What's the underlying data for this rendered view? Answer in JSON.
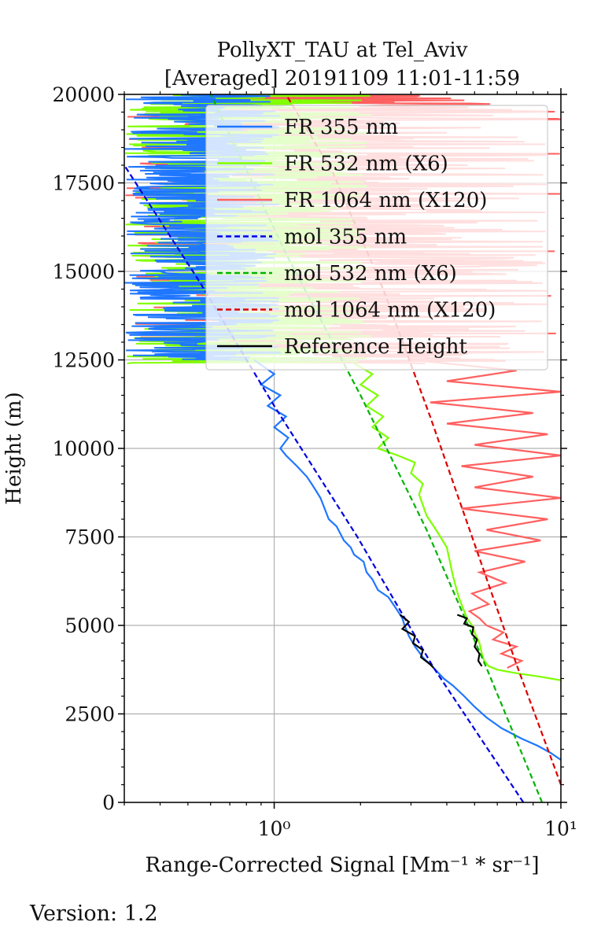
{
  "chart_data": {
    "type": "line",
    "title": "PollyXT_TAU at Tel_Aviv",
    "subtitle": "[Averaged] 20191109 11:01-11:59",
    "xlabel": "Range-Corrected Signal [Mm⁻¹ * sr⁻¹]",
    "ylabel": "Height (m)",
    "xscale": "log",
    "xlim": [
      0.3,
      10
    ],
    "ylim": [
      0,
      20000
    ],
    "xticks": [
      {
        "value": 1,
        "label": "10⁰"
      },
      {
        "value": 10,
        "label": "10¹"
      }
    ],
    "yticks": [
      0,
      2500,
      5000,
      7500,
      10000,
      12500,
      15000,
      17500,
      20000
    ],
    "grid": true,
    "legend_position": "upper-right",
    "series": [
      {
        "name": "FR 355 nm",
        "color": "#1f77ff",
        "style": "solid",
        "points": [
          [
            10,
            1200
          ],
          [
            9.2,
            1400
          ],
          [
            8.3,
            1600
          ],
          [
            7.3,
            1800
          ],
          [
            6.2,
            2100
          ],
          [
            5.5,
            2400
          ],
          [
            5.0,
            2700
          ],
          [
            4.6,
            3000
          ],
          [
            4.2,
            3300
          ],
          [
            3.9,
            3500
          ],
          [
            3.6,
            3800
          ],
          [
            3.3,
            4100
          ],
          [
            3.1,
            4400
          ],
          [
            2.95,
            4700
          ],
          [
            2.85,
            5000
          ],
          [
            2.8,
            5200
          ],
          [
            2.7,
            5400
          ],
          [
            2.65,
            5500
          ],
          [
            2.6,
            5600
          ],
          [
            2.5,
            5800
          ],
          [
            2.3,
            6000
          ],
          [
            2.2,
            6300
          ],
          [
            2.1,
            6500
          ],
          [
            2.05,
            6800
          ],
          [
            1.9,
            7000
          ],
          [
            1.85,
            7200
          ],
          [
            1.75,
            7400
          ],
          [
            1.7,
            7600
          ],
          [
            1.65,
            7800
          ],
          [
            1.55,
            8000
          ],
          [
            1.5,
            8300
          ],
          [
            1.45,
            8600
          ],
          [
            1.4,
            8800
          ],
          [
            1.35,
            9000
          ],
          [
            1.3,
            9200
          ],
          [
            1.2,
            9500
          ],
          [
            1.1,
            9800
          ],
          [
            1.05,
            10000
          ],
          [
            1.12,
            10300
          ],
          [
            1.0,
            10600
          ],
          [
            1.1,
            10900
          ],
          [
            0.95,
            11200
          ],
          [
            1.05,
            11500
          ],
          [
            0.9,
            11800
          ],
          [
            1.0,
            12100
          ],
          [
            0.85,
            12500
          ]
        ]
      },
      {
        "name": "FR 532 nm (X6)",
        "color": "#7fff00",
        "style": "solid",
        "points": [
          [
            10,
            3450
          ],
          [
            8.5,
            3550
          ],
          [
            7.0,
            3650
          ],
          [
            6.0,
            3750
          ],
          [
            5.6,
            3850
          ],
          [
            5.4,
            4000
          ],
          [
            5.3,
            4200
          ],
          [
            5.2,
            4500
          ],
          [
            5.0,
            4800
          ],
          [
            4.9,
            5000
          ],
          [
            4.7,
            5200
          ],
          [
            4.6,
            5400
          ],
          [
            4.5,
            5600
          ],
          [
            4.4,
            5800
          ],
          [
            4.3,
            6100
          ],
          [
            4.2,
            6400
          ],
          [
            4.1,
            6800
          ],
          [
            4.0,
            7200
          ],
          [
            3.8,
            7500
          ],
          [
            3.6,
            7800
          ],
          [
            3.4,
            8100
          ],
          [
            3.3,
            8400
          ],
          [
            3.2,
            8700
          ],
          [
            3.3,
            9000
          ],
          [
            3.0,
            9300
          ],
          [
            3.1,
            9600
          ],
          [
            2.7,
            9800
          ],
          [
            2.3,
            10000
          ],
          [
            2.5,
            10300
          ],
          [
            2.2,
            10600
          ],
          [
            2.4,
            10900
          ],
          [
            2.1,
            11200
          ],
          [
            2.3,
            11500
          ],
          [
            2.0,
            11800
          ],
          [
            2.2,
            12100
          ],
          [
            1.9,
            12400
          ]
        ]
      },
      {
        "name": "FR 1064 nm (X120)",
        "color": "#ff6060",
        "style": "solid",
        "points": [
          [
            6.5,
            3800
          ],
          [
            7.3,
            4000
          ],
          [
            6.2,
            4200
          ],
          [
            7.0,
            4400
          ],
          [
            5.8,
            4600
          ],
          [
            6.3,
            4800
          ],
          [
            5.5,
            5000
          ],
          [
            5.2,
            5200
          ],
          [
            4.8,
            5400
          ],
          [
            5.6,
            5600
          ],
          [
            4.9,
            5900
          ],
          [
            6.4,
            6200
          ],
          [
            5.2,
            6500
          ],
          [
            7.5,
            6800
          ],
          [
            5.0,
            7100
          ],
          [
            8.5,
            7400
          ],
          [
            5.5,
            7700
          ],
          [
            9.0,
            8000
          ],
          [
            4.5,
            8300
          ],
          [
            10,
            8600
          ],
          [
            5.0,
            8900
          ],
          [
            8.0,
            9200
          ],
          [
            4.5,
            9500
          ],
          [
            10,
            9800
          ],
          [
            5.0,
            10100
          ],
          [
            9.0,
            10400
          ],
          [
            4.0,
            10700
          ],
          [
            8.0,
            11000
          ],
          [
            3.5,
            11300
          ],
          [
            10,
            11600
          ],
          [
            4.0,
            11900
          ],
          [
            7.0,
            12200
          ],
          [
            3.0,
            12500
          ]
        ]
      },
      {
        "name": "mol 355 nm",
        "color": "#0000e0",
        "style": "dashed",
        "points": [
          [
            7.4,
            0
          ],
          [
            3.6,
            3800
          ],
          [
            1.95,
            7500
          ],
          [
            1.0,
            11200
          ],
          [
            0.55,
            14700
          ],
          [
            0.3,
            18000
          ]
        ]
      },
      {
        "name": "mol 532 nm (X6)",
        "color": "#00b400",
        "style": "dashed",
        "points": [
          [
            8.6,
            0
          ],
          [
            5.5,
            3800
          ],
          [
            3.4,
            7700
          ],
          [
            2.0,
            11500
          ],
          [
            1.1,
            15500
          ],
          [
            0.6,
            20000
          ]
        ]
      },
      {
        "name": "mol 1064 nm (X120)",
        "color": "#dd0000",
        "style": "dashed",
        "points": [
          [
            10,
            500
          ],
          [
            7.0,
            3900
          ],
          [
            4.9,
            7500
          ],
          [
            3.5,
            10900
          ],
          [
            2.4,
            14500
          ],
          [
            1.6,
            17800
          ],
          [
            1.1,
            20000
          ]
        ]
      },
      {
        "name": "Reference Height",
        "color": "#000000",
        "style": "solid",
        "points": [
          [
            2.75,
            5300
          ],
          [
            2.95,
            5100
          ],
          [
            2.8,
            4900
          ],
          [
            3.1,
            4700
          ],
          [
            3.05,
            4500
          ],
          [
            3.3,
            4300
          ],
          [
            3.25,
            4100
          ],
          [
            3.5,
            3900
          ],
          [
            3.6,
            3800
          ]
        ]
      },
      {
        "color": "#000000",
        "style": "solid",
        "points": [
          [
            4.35,
            5300
          ],
          [
            4.7,
            5200
          ],
          [
            4.6,
            5050
          ],
          [
            4.95,
            4950
          ],
          [
            4.9,
            4750
          ],
          [
            5.1,
            4600
          ],
          [
            5.0,
            4400
          ],
          [
            5.2,
            4200
          ],
          [
            5.15,
            4000
          ],
          [
            5.3,
            3850
          ]
        ]
      }
    ]
  },
  "footer": {
    "version": "Version: 1.2"
  }
}
